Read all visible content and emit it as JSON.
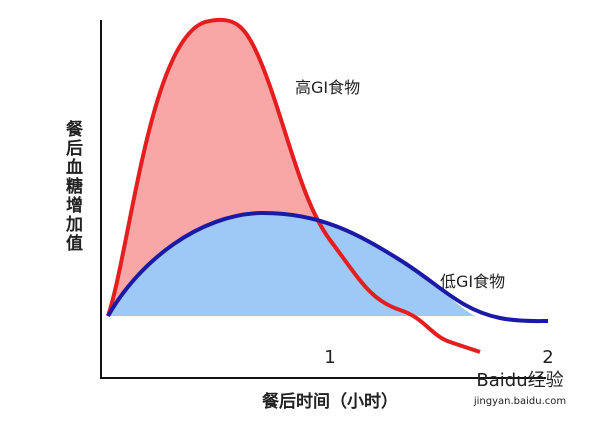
{
  "y_axis_label": "餐后血糖增加值",
  "x_axis_label": "餐后时间（小时）",
  "x_tick_labels": [
    "1",
    "2"
  ],
  "curves": [
    {
      "label": "高GI食物"
    },
    {
      "label": "低GI食物"
    }
  ],
  "watermark": {
    "title": "Baidu经验",
    "url": "jingyan.baidu.com"
  }
}
